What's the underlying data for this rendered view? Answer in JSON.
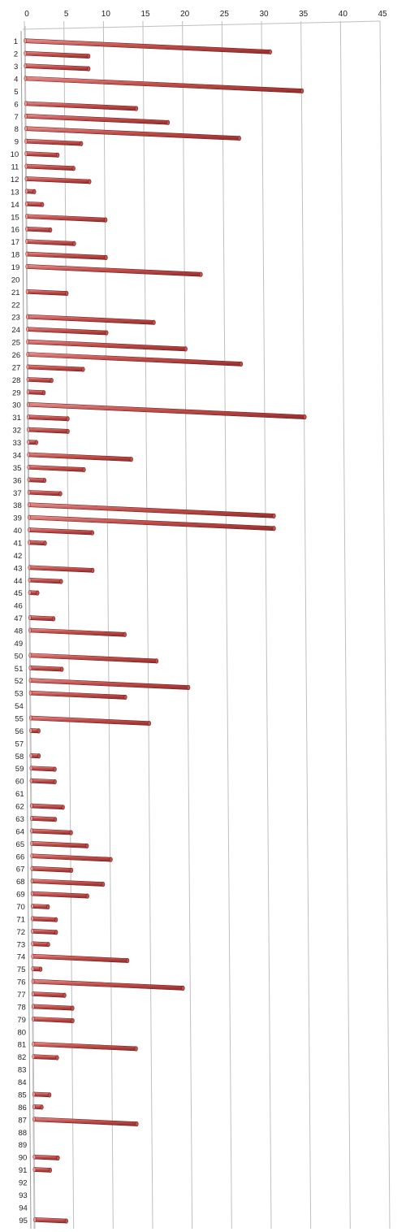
{
  "chart_data": {
    "type": "bar",
    "orientation": "horizontal",
    "style": "3d-cylinder",
    "bar_color": "#c0504d",
    "bar_edge_color": "#7a1e1c",
    "bar_highlight_color": "#e79a98",
    "grid": true,
    "xlim": [
      0,
      45
    ],
    "xticks": [
      0,
      5,
      10,
      15,
      20,
      25,
      30,
      35,
      40,
      45
    ],
    "title": "",
    "xlabel": "",
    "ylabel": "",
    "categories": [
      "1",
      "2",
      "3",
      "4",
      "5",
      "6",
      "7",
      "8",
      "9",
      "10",
      "11",
      "12",
      "13",
      "14",
      "15",
      "16",
      "17",
      "18",
      "19",
      "20",
      "21",
      "22",
      "23",
      "24",
      "25",
      "26",
      "27",
      "28",
      "29",
      "30",
      "31",
      "32",
      "33",
      "34",
      "35",
      "36",
      "37",
      "38",
      "39",
      "40",
      "41",
      "42",
      "43",
      "44",
      "45",
      "46",
      "47",
      "48",
      "49",
      "50",
      "51",
      "52",
      "53",
      "54",
      "55",
      "56",
      "57",
      "58",
      "59",
      "60",
      "61",
      "62",
      "63",
      "64",
      "65",
      "66",
      "67",
      "68",
      "69",
      "70",
      "71",
      "72",
      "73",
      "74",
      "75",
      "76",
      "77",
      "78",
      "79",
      "80",
      "81",
      "82",
      "83",
      "84",
      "85",
      "86",
      "87",
      "88",
      "89",
      "90",
      "91",
      "92",
      "93",
      "94",
      "95"
    ],
    "values": [
      31,
      8,
      8,
      35,
      0,
      14,
      18,
      27,
      7,
      4,
      6,
      8,
      1,
      2,
      10,
      3,
      6,
      10,
      22,
      0,
      5,
      0,
      16,
      10,
      20,
      27,
      7,
      3,
      2,
      35,
      5,
      5,
      1,
      13,
      7,
      2,
      4,
      31,
      31,
      8,
      2,
      0,
      8,
      4,
      1,
      0,
      3,
      12,
      0,
      16,
      4,
      20,
      12,
      0,
      15,
      1,
      0,
      1,
      3,
      3,
      0,
      4,
      3,
      5,
      7,
      10,
      5,
      9,
      7,
      2,
      3,
      3,
      2,
      12,
      1,
      19,
      4,
      5,
      5,
      0,
      13,
      3,
      0,
      0,
      2,
      1,
      13,
      0,
      0,
      3,
      2,
      0,
      0,
      0,
      4
    ]
  }
}
